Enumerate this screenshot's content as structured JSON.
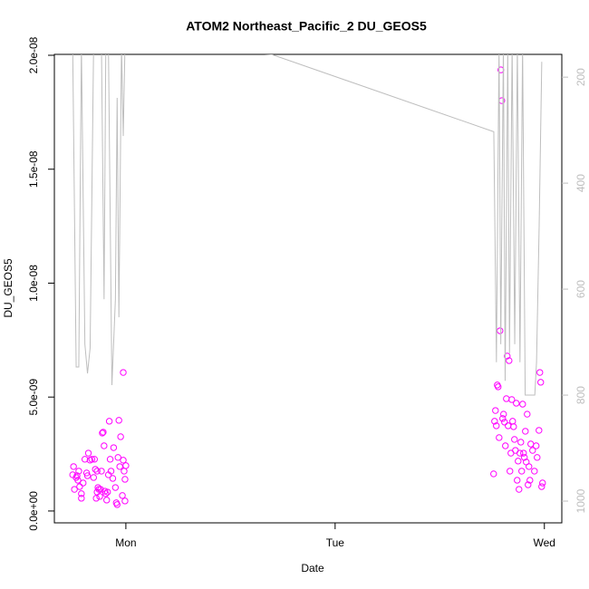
{
  "chart_data": {
    "type": "scatter",
    "title": "ATOM2 Northeast_Pacific_2 DU_GEOS5",
    "xlabel": "Date",
    "ylabel": "DU_GEOS5",
    "xlim": [
      -8.2,
      50
    ],
    "xticks": [
      {
        "value": 0,
        "label": "Mon"
      },
      {
        "value": 24,
        "label": "Tue"
      },
      {
        "value": 48,
        "label": "Wed"
      }
    ],
    "ylim": [
      -5.2e-10,
      2.004e-08
    ],
    "yticks": [
      {
        "value": 0,
        "label": "0.0e+00"
      },
      {
        "value": 5e-09,
        "label": "5.0e-09"
      },
      {
        "value": 1e-08,
        "label": "1.0e-08"
      },
      {
        "value": 1.5e-08,
        "label": "1.5e-08"
      },
      {
        "value": 2e-08,
        "label": "2.0e-08"
      }
    ],
    "y2lim": [
      1041,
      157
    ],
    "y2ticks": [
      200,
      400,
      600,
      800,
      1000
    ],
    "y2color": "#bebebe",
    "series": [
      {
        "type": "scatter",
        "color": "#ff00ff",
        "x": [
          -6.1,
          -6.0,
          -5.9,
          -5.7,
          -5.6,
          -5.5,
          -5.4,
          -5.3,
          -5.1,
          -5.1,
          -4.9,
          -4.7,
          -4.5,
          -4.4,
          -4.3,
          -4.1,
          -3.9,
          -3.7,
          -3.6,
          -3.5,
          -3.4,
          -3.3,
          -3.3,
          -3.2,
          -3.1,
          -3.0,
          -2.9,
          -2.8,
          -2.7,
          -2.6,
          -2.5,
          -2.4,
          -2.3,
          -2.2,
          -2.1,
          -2.0,
          -1.9,
          -1.8,
          -1.7,
          -1.5,
          -1.4,
          -1.2,
          -1.1,
          -1.0,
          -0.9,
          -0.8,
          -0.7,
          -0.6,
          -0.4,
          -0.3,
          -0.3,
          -0.2,
          -0.1,
          -0.1,
          0.0,
          42.18,
          42.29,
          42.39,
          42.49,
          42.6,
          42.7,
          42.81,
          42.91,
          43.01,
          43.12,
          43.22,
          43.32,
          43.43,
          43.53,
          43.64,
          43.74,
          43.84,
          43.95,
          44.05,
          44.16,
          44.26,
          44.36,
          44.47,
          44.57,
          44.68,
          44.78,
          44.88,
          44.99,
          45.09,
          45.19,
          45.3,
          45.4,
          45.51,
          45.61,
          45.71,
          45.82,
          45.92,
          46.03,
          46.13,
          46.23,
          46.34,
          46.44,
          46.65,
          46.86,
          47.06,
          47.17,
          47.38,
          47.48,
          47.58,
          47.69,
          47.79
        ],
        "values": [
          1.59e-09,
          1.95e-09,
          9.5e-10,
          1.47e-09,
          1.55e-09,
          1.35e-09,
          1.75e-09,
          1.07e-09,
          7.6e-10,
          5.6e-10,
          1.23e-09,
          2.27e-09,
          1.67e-09,
          1.55e-09,
          2.54e-09,
          2.23e-09,
          2.27e-09,
          1.47e-09,
          2.27e-09,
          1.83e-09,
          5.6e-10,
          8.3e-10,
          1.75e-09,
          1.03e-09,
          9.5e-10,
          6.4e-10,
          9.5e-10,
          1.75e-09,
          3.42e-09,
          3.46e-09,
          2.86e-09,
          8.7e-10,
          7.6e-10,
          4.8e-10,
          8.3e-10,
          1.59e-09,
          3.94e-09,
          2.27e-09,
          1.75e-09,
          1.43e-09,
          2.78e-09,
          1.03e-09,
          3.6e-10,
          2.8e-10,
          2.35e-09,
          3.98e-09,
          1.95e-09,
          3.26e-09,
          6.8e-10,
          2.23e-09,
          6.08e-09,
          1.75e-09,
          4.4e-10,
          1.39e-09,
          1.99e-09,
          1.63e-09,
          3.94e-09,
          4.41e-09,
          3.74e-09,
          5.53e-09,
          5.45e-09,
          3.22e-09,
          7.91e-09,
          1.936e-08,
          1.801e-08,
          4.06e-09,
          4.25e-09,
          3.9e-09,
          2.86e-09,
          4.93e-09,
          6.8e-09,
          3.74e-09,
          6.6e-09,
          1.75e-09,
          2.54e-09,
          4.89e-09,
          3.94e-09,
          3.7e-09,
          3.14e-09,
          2.66e-09,
          4.73e-09,
          1.35e-09,
          2.19e-09,
          9.5e-10,
          2.54e-09,
          3.02e-09,
          1.75e-09,
          4.69e-09,
          2.54e-09,
          2.35e-09,
          3.5e-09,
          2.15e-09,
          4.25e-09,
          1.15e-09,
          1.95e-09,
          1.35e-09,
          2.94e-09,
          2.66e-09,
          1.75e-09,
          2.86e-09,
          2.35e-09,
          3.54e-09,
          6.08e-09,
          5.65e-09,
          1.07e-09,
          1.23e-09
        ]
      },
      {
        "type": "line",
        "color": "#bebebe",
        "axis": "y2",
        "x": [
          -6.1,
          -5.7,
          -5.4,
          -5.1,
          -4.7,
          -4.4,
          -4.1,
          -3.7,
          -2.8,
          -2.5,
          -2.3,
          -2.0,
          -1.6,
          -1.2,
          -1.0,
          -0.8,
          -0.5,
          -0.3,
          -0.1,
          16.7,
          42.2,
          42.5,
          42.8,
          43.0,
          43.3,
          43.5,
          43.8,
          44.0,
          44.3,
          44.6,
          44.9,
          45.2,
          45.5,
          45.8,
          46.9,
          47.1,
          47.4,
          47.7
        ],
        "values": [
          140,
          747,
          747,
          140,
          704,
          759,
          711,
          140,
          140,
          619,
          140,
          140,
          781,
          619,
          239,
          653,
          140,
          311,
          140,
          157,
          303,
          738,
          140,
          704,
          140,
          773,
          140,
          721,
          140,
          704,
          140,
          738,
          140,
          800,
          800,
          738,
          482,
          171
        ]
      }
    ]
  }
}
